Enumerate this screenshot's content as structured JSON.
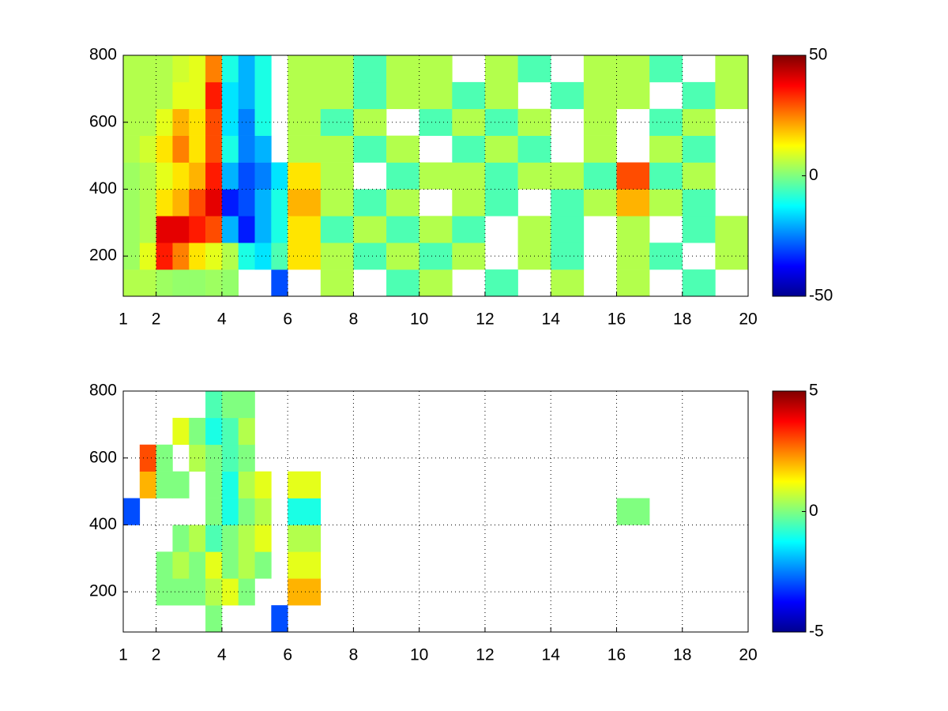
{
  "chart_data": [
    {
      "type": "heatmap",
      "colormap": "jet",
      "grid": true,
      "xlim": [
        1,
        20
      ],
      "ylim": [
        80,
        800
      ],
      "xticks": [
        1,
        2,
        4,
        6,
        8,
        10,
        12,
        14,
        16,
        18,
        20
      ],
      "yticks": [
        200,
        400,
        600,
        800
      ],
      "clim": [
        -50,
        50
      ],
      "cticks": [
        -50,
        0,
        50
      ],
      "xbins": [
        1,
        1.5,
        2,
        2.5,
        3,
        3.5,
        4,
        4.5,
        5,
        5.5,
        6,
        7,
        8,
        9,
        10,
        11,
        12,
        13,
        14,
        15,
        16,
        17,
        18,
        19,
        20
      ],
      "ybins": [
        80,
        160,
        240,
        320,
        400,
        480,
        560,
        640,
        720,
        800
      ],
      "values": [
        [
          5,
          5,
          3,
          2,
          2,
          3,
          2,
          null,
          null,
          -30,
          null,
          5,
          null,
          -5,
          5,
          null,
          -5,
          null,
          5,
          null,
          5,
          null,
          -5,
          null
        ],
        [
          3,
          10,
          35,
          25,
          15,
          10,
          5,
          -10,
          -15,
          -5,
          15,
          5,
          -5,
          5,
          -5,
          5,
          null,
          5,
          -5,
          null,
          5,
          -5,
          null,
          5
        ],
        [
          3,
          5,
          40,
          40,
          35,
          30,
          -20,
          -35,
          -20,
          -10,
          15,
          -5,
          5,
          -5,
          5,
          -5,
          null,
          5,
          -5,
          null,
          5,
          null,
          -5,
          5
        ],
        [
          3,
          5,
          15,
          20,
          30,
          40,
          -35,
          -30,
          -20,
          -10,
          20,
          5,
          -5,
          5,
          null,
          5,
          -5,
          null,
          -5,
          5,
          20,
          5,
          -5,
          null
        ],
        [
          3,
          5,
          10,
          15,
          20,
          35,
          -20,
          -30,
          -25,
          -15,
          15,
          5,
          null,
          -5,
          5,
          5,
          -5,
          5,
          5,
          -5,
          30,
          -5,
          5,
          null
        ],
        [
          5,
          8,
          15,
          25,
          15,
          30,
          -10,
          -25,
          -20,
          null,
          5,
          5,
          -5,
          5,
          null,
          -5,
          5,
          -5,
          null,
          5,
          null,
          5,
          -5,
          null
        ],
        [
          5,
          5,
          10,
          20,
          15,
          30,
          -15,
          -25,
          -10,
          null,
          5,
          -5,
          5,
          null,
          -5,
          5,
          -5,
          5,
          null,
          5,
          null,
          -5,
          5,
          null
        ],
        [
          5,
          5,
          5,
          10,
          10,
          35,
          -15,
          -20,
          -10,
          null,
          5,
          5,
          -5,
          5,
          5,
          -5,
          5,
          null,
          -5,
          5,
          5,
          null,
          -5,
          5
        ],
        [
          5,
          5,
          5,
          8,
          10,
          25,
          -10,
          -20,
          -10,
          null,
          5,
          5,
          -5,
          5,
          5,
          null,
          5,
          -5,
          null,
          5,
          5,
          -5,
          null,
          5
        ]
      ]
    },
    {
      "type": "heatmap",
      "colormap": "jet",
      "grid": true,
      "xlim": [
        1,
        20
      ],
      "ylim": [
        80,
        800
      ],
      "xticks": [
        1,
        2,
        4,
        6,
        8,
        10,
        12,
        14,
        16,
        18,
        20
      ],
      "yticks": [
        200,
        400,
        600,
        800
      ],
      "clim": [
        -5,
        5
      ],
      "cticks": [
        -5,
        0,
        5
      ],
      "xbins": [
        1,
        1.5,
        2,
        2.5,
        3,
        3.5,
        4,
        4.5,
        5,
        5.5,
        6,
        7,
        8,
        9,
        10,
        11,
        12,
        13,
        14,
        15,
        16,
        17,
        18,
        19,
        20
      ],
      "ybins": [
        80,
        160,
        240,
        320,
        400,
        480,
        560,
        640,
        720,
        800
      ],
      "values": [
        [
          null,
          null,
          null,
          null,
          null,
          0,
          null,
          null,
          null,
          -3,
          null,
          null,
          null,
          null,
          null,
          null,
          null,
          null,
          null,
          null,
          null,
          null,
          null,
          null
        ],
        [
          null,
          null,
          0,
          0,
          0,
          0.5,
          1,
          0,
          null,
          null,
          2,
          null,
          null,
          null,
          null,
          null,
          null,
          null,
          null,
          null,
          null,
          null,
          null,
          null
        ],
        [
          null,
          null,
          0,
          0.5,
          0,
          1,
          0,
          0.5,
          0,
          null,
          1,
          null,
          null,
          null,
          null,
          null,
          null,
          null,
          null,
          null,
          null,
          null,
          null,
          null
        ],
        [
          null,
          null,
          null,
          0,
          0.5,
          -0.5,
          0,
          0.5,
          1,
          null,
          0.5,
          null,
          null,
          null,
          null,
          null,
          null,
          null,
          null,
          null,
          null,
          null,
          null,
          null
        ],
        [
          -3,
          null,
          null,
          null,
          null,
          0,
          -1,
          0,
          0.5,
          null,
          -1,
          null,
          null,
          null,
          null,
          null,
          null,
          null,
          null,
          null,
          0,
          null,
          null,
          null
        ],
        [
          null,
          2,
          0,
          0,
          null,
          0,
          -1,
          0.5,
          1,
          null,
          1,
          null,
          null,
          null,
          null,
          null,
          null,
          null,
          null,
          null,
          null,
          null,
          null,
          null
        ],
        [
          null,
          3,
          0,
          null,
          0.5,
          0,
          -0.5,
          0,
          null,
          null,
          null,
          null,
          null,
          null,
          null,
          null,
          null,
          null,
          null,
          null,
          null,
          null,
          null,
          null
        ],
        [
          null,
          null,
          null,
          1,
          0,
          -1,
          -0.5,
          0.5,
          null,
          null,
          null,
          null,
          null,
          null,
          null,
          null,
          null,
          null,
          null,
          null,
          null,
          null,
          null,
          null
        ],
        [
          null,
          null,
          null,
          null,
          null,
          -0.5,
          0,
          0,
          null,
          null,
          null,
          null,
          null,
          null,
          null,
          null,
          null,
          null,
          null,
          null,
          null,
          null,
          null,
          null
        ]
      ]
    }
  ]
}
